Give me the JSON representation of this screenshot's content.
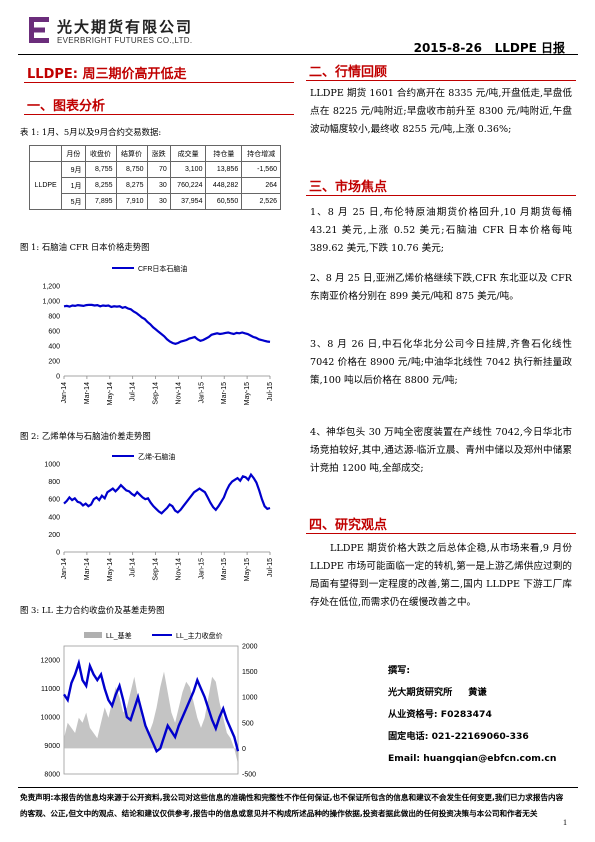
{
  "header": {
    "company_cn": "光大期货有限公司",
    "company_en": "EVERBRIGHT FUTURES CO.,LTD.",
    "date": "2015-8-26",
    "report_title": "LLDPE 日报"
  },
  "headline": "LLDPE: 周三期价高开低走",
  "left": {
    "section1_title": "一、图表分析",
    "table_caption": "表 1: 1月、5月以及9月合约交易数据:",
    "table": {
      "headers": [
        "月份",
        "收盘价",
        "结算价",
        "涨跌",
        "成交量",
        "持仓量",
        "持仓增减"
      ],
      "product": "LLDPE",
      "rows": [
        [
          "9月",
          "8,755",
          "8,750",
          "70",
          "3,100",
          "13,856",
          "-1,560"
        ],
        [
          "1月",
          "8,255",
          "8,275",
          "30",
          "760,224",
          "448,282",
          "264"
        ],
        [
          "5月",
          "7,895",
          "7,910",
          "30",
          "37,954",
          "60,550",
          "2,526"
        ]
      ]
    },
    "fig1_caption": "图 1: 石脑油 CFR 日本价格走势图",
    "fig2_caption": "图 2: 乙烯单体与石脑油价差走势图",
    "fig3_caption": "图 3: LL 主力合约收盘价及基差走势图"
  },
  "right": {
    "section2_title": "二、行情回顾",
    "section2_text": "LLDPE 期货 1601 合约高开在 8335 元/吨,开盘低走,早盘低点在 8225 元/吨附近;早盘收市前升至 8300 元/吨附近,午盘波动幅度较小,最终收 8255 元/吨,上涨 0.36%;",
    "section3_title": "三、市场焦点",
    "focus": [
      "1、8 月 25 日,布伦特原油期货价格回升,10 月期货每桶 43.21 美元,上涨 0.52 美元;石脑油 CFR 日本价格每吨 389.62 美元,下跌 10.76 美元;",
      "2、8 月 25 日,亚洲乙烯价格继续下跌,CFR 东北亚以及 CFR 东南亚价格分别在 899 美元/吨和 875 美元/吨。",
      "3、8 月 26 日,中石化华北分公司今日挂牌,齐鲁石化线性 7042 价格在 8900 元/吨;中油华北线性 7042 执行新挂量政策,100 吨以后价格在 8800 元/吨;",
      "4、神华包头 30 万吨全密度装置在产线性 7042,今日华北市场竞拍较好,其中,通达源-临沂立晨、青州中储以及郑州中储累计竞拍 1200 吨,全部成交;"
    ],
    "section4_title": "四、研究观点",
    "section4_text": "LLDPE 期货价格大跌之后总体企稳,从市场来看,9 月份 LLDPE 市场可能面临一定的转机,第一是上游乙烯供应过剩的局面有望得到一定程度的改善,第二,国内 LLDPE 下游工厂库存处在低位,而需求仍在缓慢改善之中。",
    "author": {
      "l1": "撰写:",
      "l2": "光大期货研究所     黄谦",
      "l3": "从业资格号: F0283474",
      "l4": "固定电话: 021-22169060-336",
      "l5": "Email:  huangqian@ebfcn.com.cn"
    }
  },
  "disclaimer": "免责声明:本报告的信息均来源于公开资料,我公司对这些信息的准确性和完整性不作任何保证,也不保证所包含的信息和建议不会发生任何变更,我们已力求报告内容的客观、公正,但文中的观点、结论和建议仅供参考,报告中的信息或意见并不构成所述品种的操作依据,投资者据此做出的任何投资决策与本公司和作者无关",
  "page_number": "1",
  "colors": {
    "brand_purple": "#6b2d7b",
    "accent_red": "#c00000",
    "series_blue": "#0000cc",
    "basis_gray": "#b0b0b0"
  },
  "chart_data": [
    {
      "type": "line",
      "legend": [
        "CFR日本石脑油"
      ],
      "x_ticks": [
        "Jan-14",
        "Mar-14",
        "May-14",
        "Jul-14",
        "Sep-14",
        "Nov-14",
        "Jan-15",
        "Mar-15",
        "May-15",
        "Jul-15"
      ],
      "y_ticks": [
        "0",
        "200",
        "400",
        "600",
        "800",
        "1,000",
        "1,200"
      ],
      "ylim": [
        0,
        1200
      ],
      "series": [
        {
          "name": "CFR日本石脑油",
          "values": [
            930,
            935,
            925,
            940,
            935,
            945,
            940,
            935,
            945,
            950,
            948,
            940,
            945,
            930,
            940,
            935,
            940,
            920,
            930,
            925,
            930,
            910,
            920,
            900,
            890,
            860,
            840,
            810,
            780,
            760,
            720,
            690,
            650,
            620,
            590,
            560,
            530,
            490,
            460,
            440,
            430,
            440,
            460,
            470,
            480,
            500,
            510,
            520,
            490,
            470,
            480,
            500,
            520,
            550,
            560,
            570,
            560,
            565,
            575,
            580,
            570,
            560,
            575,
            570,
            580,
            570,
            560,
            540,
            520,
            510,
            490,
            480,
            470,
            460,
            455
          ]
        }
      ]
    },
    {
      "type": "line",
      "legend": [
        "乙烯-石脑油"
      ],
      "x_ticks": [
        "Jan-14",
        "Mar-14",
        "May-14",
        "Jul-14",
        "Sep-14",
        "Nov-14",
        "Jan-15",
        "Mar-15",
        "May-15",
        "Jul-15"
      ],
      "y_ticks": [
        "0",
        "200",
        "400",
        "600",
        "800",
        "1000"
      ],
      "ylim": [
        0,
        1000
      ],
      "series": [
        {
          "name": "乙烯-石脑油",
          "values": [
            550,
            580,
            620,
            590,
            610,
            570,
            560,
            530,
            550,
            520,
            540,
            600,
            620,
            590,
            640,
            610,
            680,
            700,
            720,
            690,
            720,
            760,
            730,
            700,
            690,
            660,
            640,
            680,
            650,
            620,
            600,
            610,
            560,
            520,
            490,
            460,
            440,
            470,
            500,
            540,
            520,
            470,
            450,
            480,
            520,
            560,
            600,
            640,
            680,
            700,
            720,
            700,
            680,
            620,
            560,
            510,
            480,
            520,
            570,
            620,
            700,
            760,
            800,
            820,
            840,
            810,
            860,
            850,
            820,
            880,
            840,
            790,
            700,
            600,
            520,
            490,
            500
          ]
        }
      ]
    },
    {
      "type": "line",
      "legend": [
        "LL_基差",
        "LL_主力收盘价"
      ],
      "y_ticks_left": [
        "8000",
        "9000",
        "10000",
        "11000",
        "12000"
      ],
      "y_ticks_right": [
        "-500",
        "0",
        "500",
        "1000",
        "1500",
        "2000"
      ],
      "ylim_left": [
        8000,
        12500
      ],
      "ylim_right": [
        -500,
        2000
      ],
      "series": [
        {
          "name": "LL_主力收盘价",
          "values": [
            10800,
            10600,
            11200,
            11500,
            11900,
            11300,
            11100,
            11800,
            11500,
            11300,
            11500,
            11000,
            10600,
            10400,
            10800,
            11100,
            10600,
            10000,
            9900,
            10300,
            10700,
            10200,
            9700,
            9400,
            9100,
            8800,
            8900,
            9300,
            9700,
            9500,
            9300,
            9700,
            10000,
            10300,
            10600,
            10900,
            11300,
            11000,
            10700,
            10300,
            9900,
            9600,
            10000,
            10300,
            9900,
            9600,
            9300,
            8800
          ]
        },
        {
          "name": "LL_基差",
          "values": [
            200,
            500,
            400,
            300,
            600,
            500,
            700,
            400,
            300,
            200,
            500,
            800,
            600,
            900,
            1200,
            1000,
            700,
            800,
            1100,
            1400,
            1000,
            600,
            400,
            300,
            500,
            800,
            1200,
            1500,
            1100,
            700,
            500,
            800,
            1100,
            1300,
            1200,
            900,
            600,
            400,
            600,
            1000,
            1400,
            1300,
            900,
            600,
            300,
            200,
            0,
            -300
          ]
        }
      ]
    }
  ]
}
